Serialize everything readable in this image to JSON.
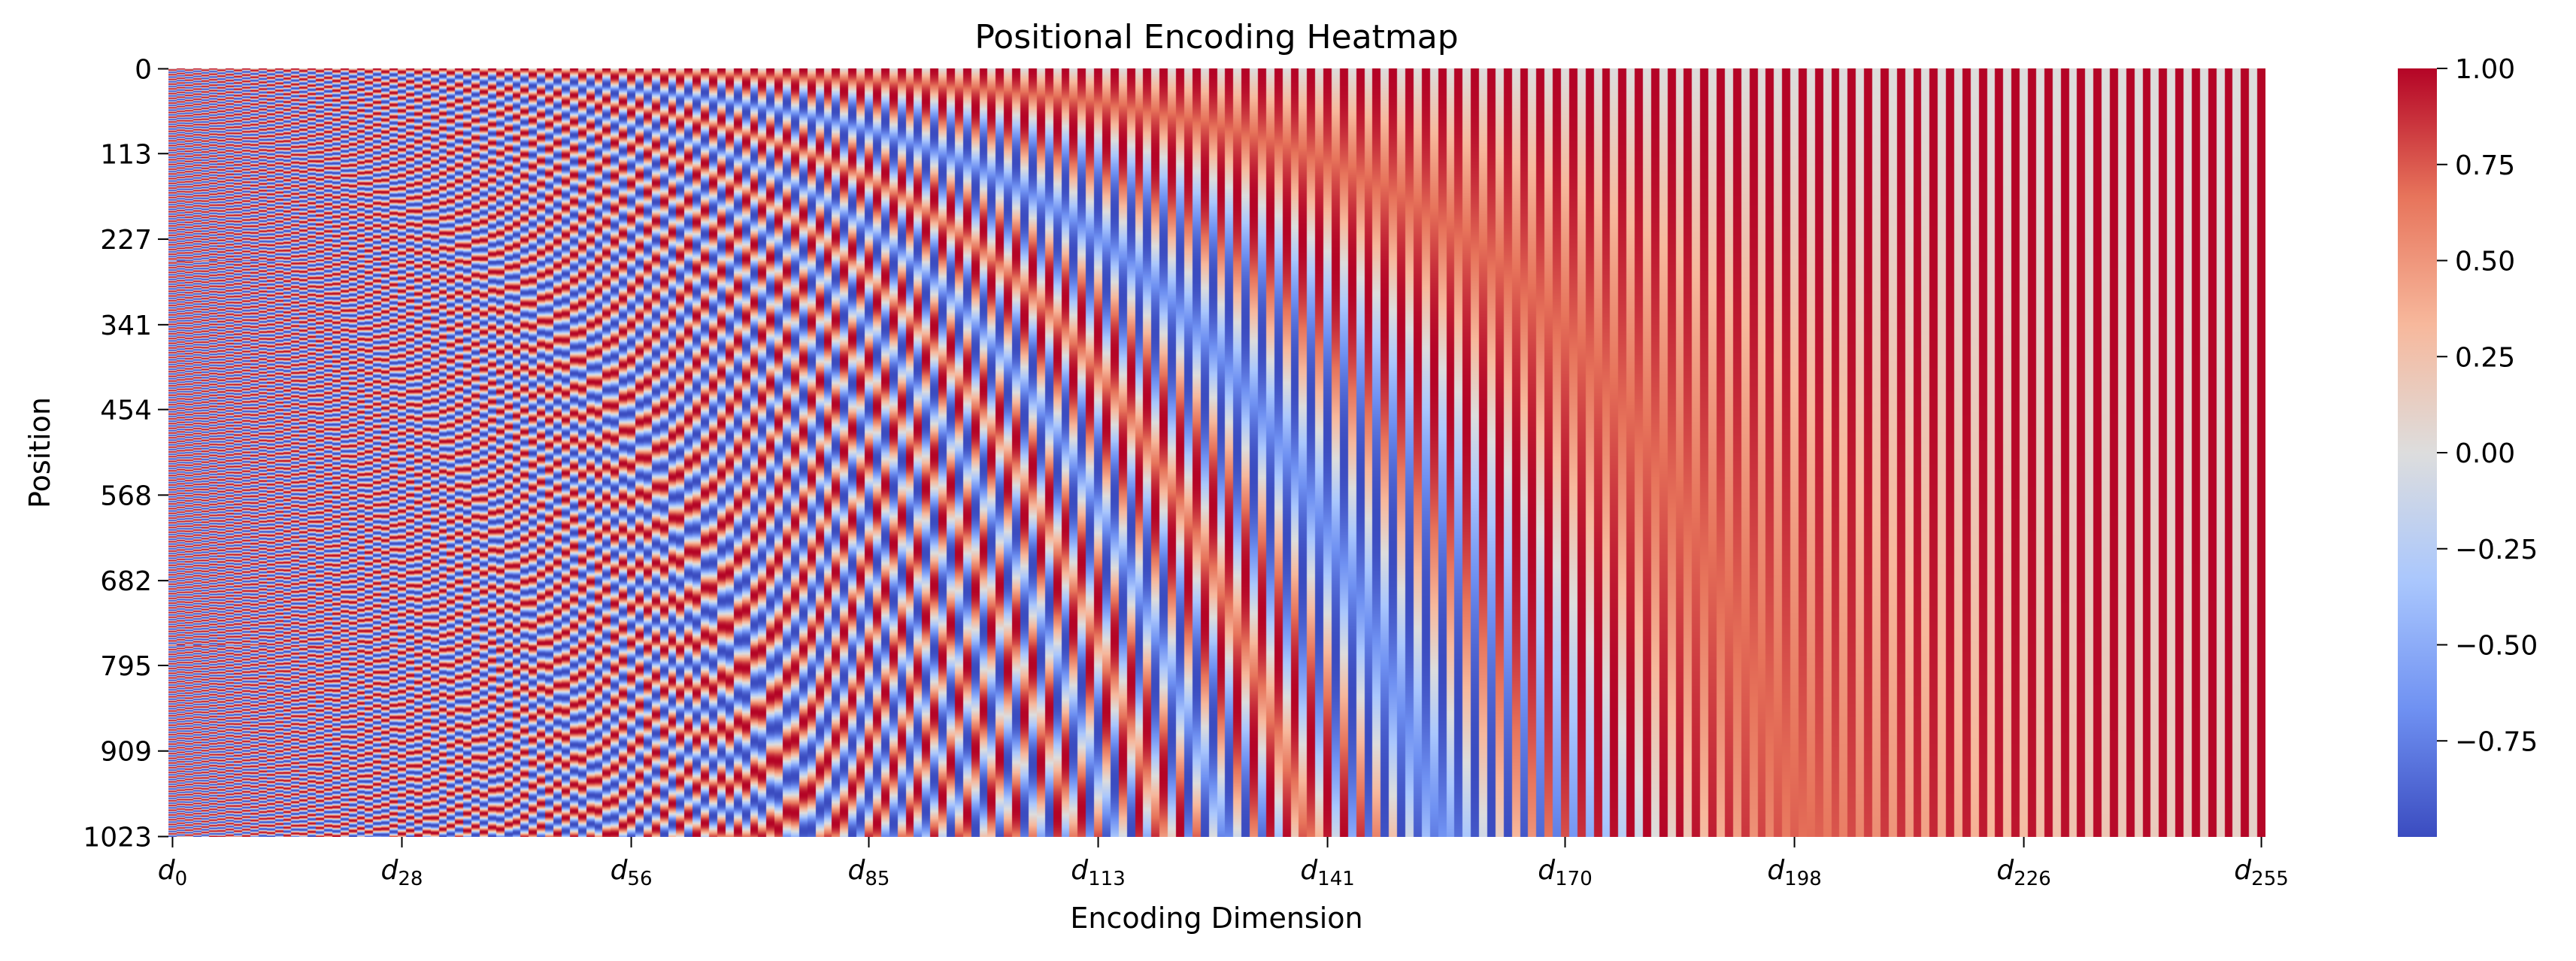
{
  "chart_data": {
    "type": "heatmap",
    "title": "Positional Encoding Heatmap",
    "xlabel": "Encoding Dimension",
    "ylabel": "Position",
    "x_range": [
      0,
      255
    ],
    "y_range": [
      0,
      1023
    ],
    "n_positions": 1024,
    "n_dimensions": 256,
    "encoding": "sinusoidal",
    "frequency_base": 10000,
    "colormap": "coolwarm",
    "colormap_stops": [
      "#3b4cc0",
      "#6f91f2",
      "#aac7fd",
      "#dddddd",
      "#f7b89c",
      "#e7745b",
      "#b40426"
    ],
    "value_range": [
      -1.0,
      1.0
    ],
    "y_ticks": [
      "0",
      "113",
      "227",
      "341",
      "454",
      "568",
      "682",
      "795",
      "909",
      "1023"
    ],
    "y_tick_values": [
      0,
      113,
      227,
      341,
      454,
      568,
      682,
      795,
      909,
      1023
    ],
    "x_ticks": [
      {
        "base": "d",
        "sub": "0",
        "value": 0
      },
      {
        "base": "d",
        "sub": "28",
        "value": 28
      },
      {
        "base": "d",
        "sub": "56",
        "value": 56
      },
      {
        "base": "d",
        "sub": "85",
        "value": 85
      },
      {
        "base": "d",
        "sub": "113",
        "value": 113
      },
      {
        "base": "d",
        "sub": "141",
        "value": 141
      },
      {
        "base": "d",
        "sub": "170",
        "value": 170
      },
      {
        "base": "d",
        "sub": "198",
        "value": 198
      },
      {
        "base": "d",
        "sub": "226",
        "value": 226
      },
      {
        "base": "d",
        "sub": "255",
        "value": 255
      }
    ],
    "colorbar_ticks": [
      "1.00",
      "0.75",
      "0.50",
      "0.25",
      "0.00",
      "−0.25",
      "−0.50",
      "−0.75"
    ],
    "colorbar_tick_values": [
      1.0,
      0.75,
      0.5,
      0.25,
      0.0,
      -0.25,
      -0.5,
      -0.75
    ],
    "grid": false,
    "legend": "colorbar-right"
  }
}
